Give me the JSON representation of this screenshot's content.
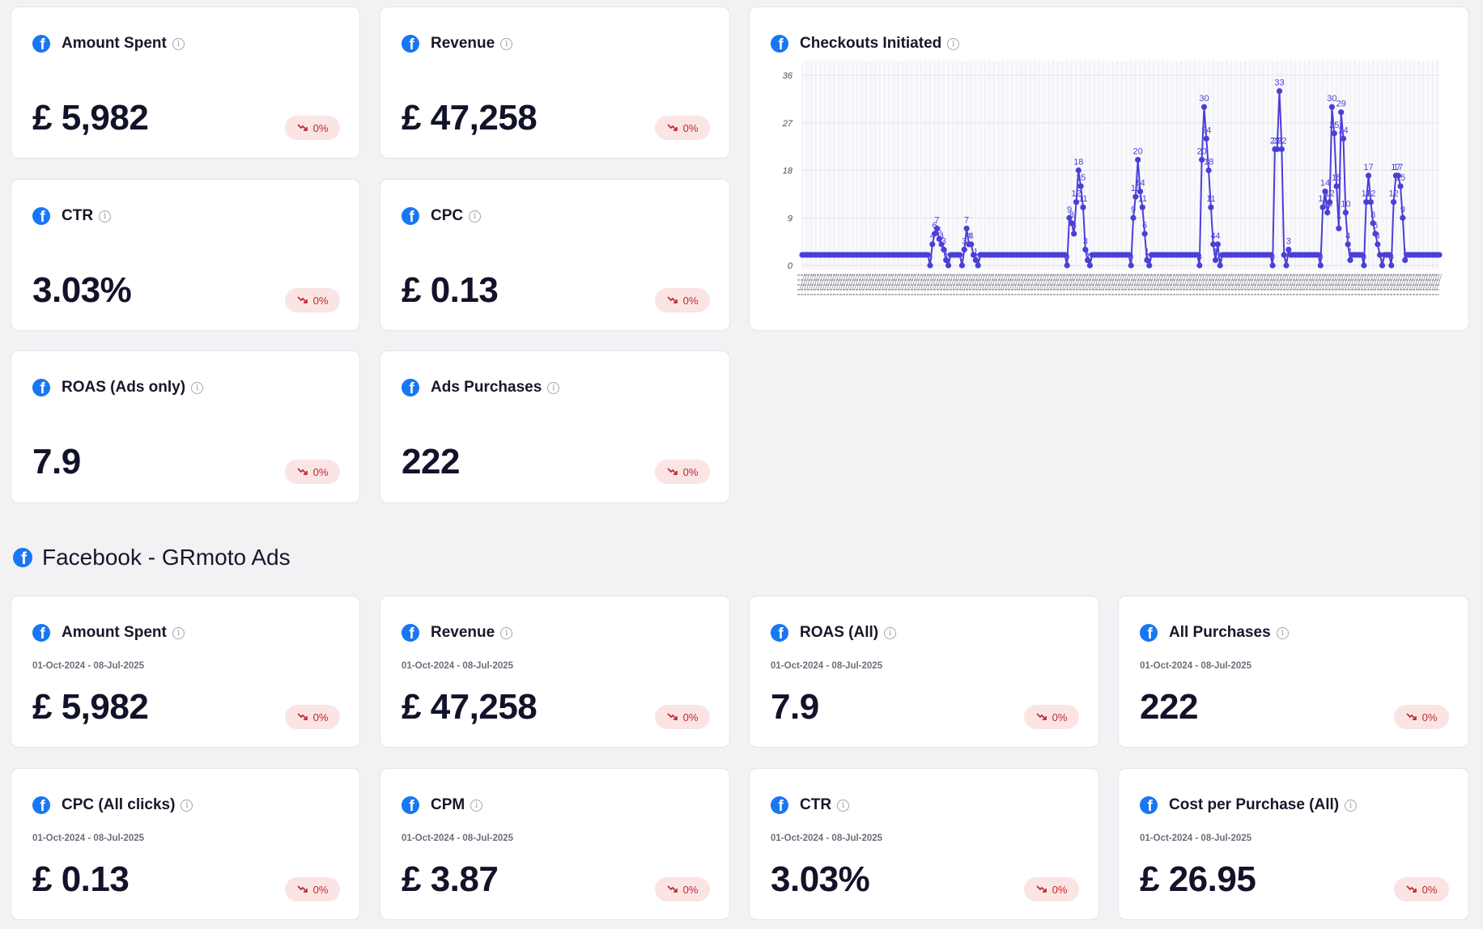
{
  "top_cards": [
    {
      "title": "Amount Spent",
      "value": "£ 5,982",
      "change": "0%"
    },
    {
      "title": "Revenue",
      "value": "£ 47,258",
      "change": "0%"
    },
    {
      "title": "CTR",
      "value": "3.03%",
      "change": "0%"
    },
    {
      "title": "CPC",
      "value": "£ 0.13",
      "change": "0%"
    },
    {
      "title": "ROAS (Ads only)",
      "value": "7.9",
      "change": "0%"
    },
    {
      "title": "Ads Purchases",
      "value": "222",
      "change": "0%"
    }
  ],
  "chart_card": {
    "title": "Checkouts Initiated"
  },
  "section": {
    "title": "Facebook - GRmoto Ads"
  },
  "bottom_cards": [
    {
      "title": "Amount Spent",
      "date_range": "01-Oct-2024 - 08-Jul-2025",
      "value": "£ 5,982",
      "change": "0%"
    },
    {
      "title": "Revenue",
      "date_range": "01-Oct-2024 - 08-Jul-2025",
      "value": "£ 47,258",
      "change": "0%"
    },
    {
      "title": "ROAS (All)",
      "date_range": "01-Oct-2024 - 08-Jul-2025",
      "value": "7.9",
      "change": "0%"
    },
    {
      "title": "All Purchases",
      "date_range": "01-Oct-2024 - 08-Jul-2025",
      "value": "222",
      "change": "0%"
    },
    {
      "title": "CPC (All clicks)",
      "date_range": "01-Oct-2024 - 08-Jul-2025",
      "value": "£ 0.13",
      "change": "0%"
    },
    {
      "title": "CPM",
      "date_range": "01-Oct-2024 - 08-Jul-2025",
      "value": "£ 3.87",
      "change": "0%"
    },
    {
      "title": "CTR",
      "date_range": "01-Oct-2024 - 08-Jul-2025",
      "value": "3.03%",
      "change": "0%"
    },
    {
      "title": "Cost per Purchase (All)",
      "date_range": "01-Oct-2024 - 08-Jul-2025",
      "value": "£ 26.95",
      "change": "0%"
    }
  ],
  "colors": {
    "facebook_blue": "#1877f2",
    "line": "#4b3fd8",
    "badge_bg": "#fbe4e4",
    "badge_text": "#c4282c"
  },
  "icons": {
    "brand": "facebook-icon",
    "info": "info-icon",
    "trend": "trend-down-icon"
  },
  "chart_data": {
    "type": "line",
    "title": "Checkouts Initiated",
    "xlabel": "",
    "ylabel": "",
    "ylim": [
      0,
      36
    ],
    "y_ticks": [
      0,
      9,
      18,
      27,
      36
    ],
    "grid": true,
    "n_points": 280,
    "baseline": 2,
    "peaks": [
      {
        "x": 56,
        "y": 0
      },
      {
        "x": 57,
        "y": 4
      },
      {
        "x": 58,
        "y": 6
      },
      {
        "x": 59,
        "y": 7
      },
      {
        "x": 60,
        "y": 5
      },
      {
        "x": 61,
        "y": 4
      },
      {
        "x": 62,
        "y": 3
      },
      {
        "x": 63,
        "y": 1
      },
      {
        "x": 64,
        "y": 0
      },
      {
        "x": 70,
        "y": 0
      },
      {
        "x": 71,
        "y": 3
      },
      {
        "x": 72,
        "y": 7
      },
      {
        "x": 73,
        "y": 4
      },
      {
        "x": 74,
        "y": 4
      },
      {
        "x": 75,
        "y": 2
      },
      {
        "x": 76,
        "y": 1
      },
      {
        "x": 77,
        "y": 0
      },
      {
        "x": 116,
        "y": 0
      },
      {
        "x": 117,
        "y": 9
      },
      {
        "x": 118,
        "y": 8
      },
      {
        "x": 119,
        "y": 6
      },
      {
        "x": 120,
        "y": 12
      },
      {
        "x": 121,
        "y": 18
      },
      {
        "x": 122,
        "y": 15
      },
      {
        "x": 123,
        "y": 11
      },
      {
        "x": 124,
        "y": 3
      },
      {
        "x": 125,
        "y": 1
      },
      {
        "x": 126,
        "y": 0
      },
      {
        "x": 144,
        "y": 0
      },
      {
        "x": 145,
        "y": 9
      },
      {
        "x": 146,
        "y": 13
      },
      {
        "x": 147,
        "y": 20
      },
      {
        "x": 148,
        "y": 14
      },
      {
        "x": 149,
        "y": 11
      },
      {
        "x": 150,
        "y": 6
      },
      {
        "x": 151,
        "y": 1
      },
      {
        "x": 152,
        "y": 0
      },
      {
        "x": 174,
        "y": 0
      },
      {
        "x": 175,
        "y": 20
      },
      {
        "x": 176,
        "y": 30
      },
      {
        "x": 177,
        "y": 24
      },
      {
        "x": 178,
        "y": 18
      },
      {
        "x": 179,
        "y": 11
      },
      {
        "x": 180,
        "y": 4
      },
      {
        "x": 181,
        "y": 1
      },
      {
        "x": 182,
        "y": 4
      },
      {
        "x": 183,
        "y": 0
      },
      {
        "x": 206,
        "y": 0
      },
      {
        "x": 207,
        "y": 22
      },
      {
        "x": 208,
        "y": 22
      },
      {
        "x": 209,
        "y": 33
      },
      {
        "x": 210,
        "y": 22
      },
      {
        "x": 211,
        "y": 2
      },
      {
        "x": 212,
        "y": 0
      },
      {
        "x": 213,
        "y": 3
      },
      {
        "x": 214,
        "y": 2
      },
      {
        "x": 227,
        "y": 0
      },
      {
        "x": 228,
        "y": 11
      },
      {
        "x": 229,
        "y": 14
      },
      {
        "x": 230,
        "y": 10
      },
      {
        "x": 231,
        "y": 12
      },
      {
        "x": 232,
        "y": 30
      },
      {
        "x": 233,
        "y": 25
      },
      {
        "x": 234,
        "y": 15
      },
      {
        "x": 235,
        "y": 7
      },
      {
        "x": 236,
        "y": 29
      },
      {
        "x": 237,
        "y": 24
      },
      {
        "x": 238,
        "y": 10
      },
      {
        "x": 239,
        "y": 4
      },
      {
        "x": 240,
        "y": 1
      },
      {
        "x": 246,
        "y": 0
      },
      {
        "x": 247,
        "y": 12
      },
      {
        "x": 248,
        "y": 17
      },
      {
        "x": 249,
        "y": 12
      },
      {
        "x": 250,
        "y": 8
      },
      {
        "x": 251,
        "y": 6
      },
      {
        "x": 252,
        "y": 4
      },
      {
        "x": 253,
        "y": 2
      },
      {
        "x": 254,
        "y": 0
      },
      {
        "x": 258,
        "y": 0
      },
      {
        "x": 259,
        "y": 12
      },
      {
        "x": 260,
        "y": 17
      },
      {
        "x": 261,
        "y": 17
      },
      {
        "x": 262,
        "y": 15
      },
      {
        "x": 263,
        "y": 9
      },
      {
        "x": 264,
        "y": 1
      }
    ]
  }
}
